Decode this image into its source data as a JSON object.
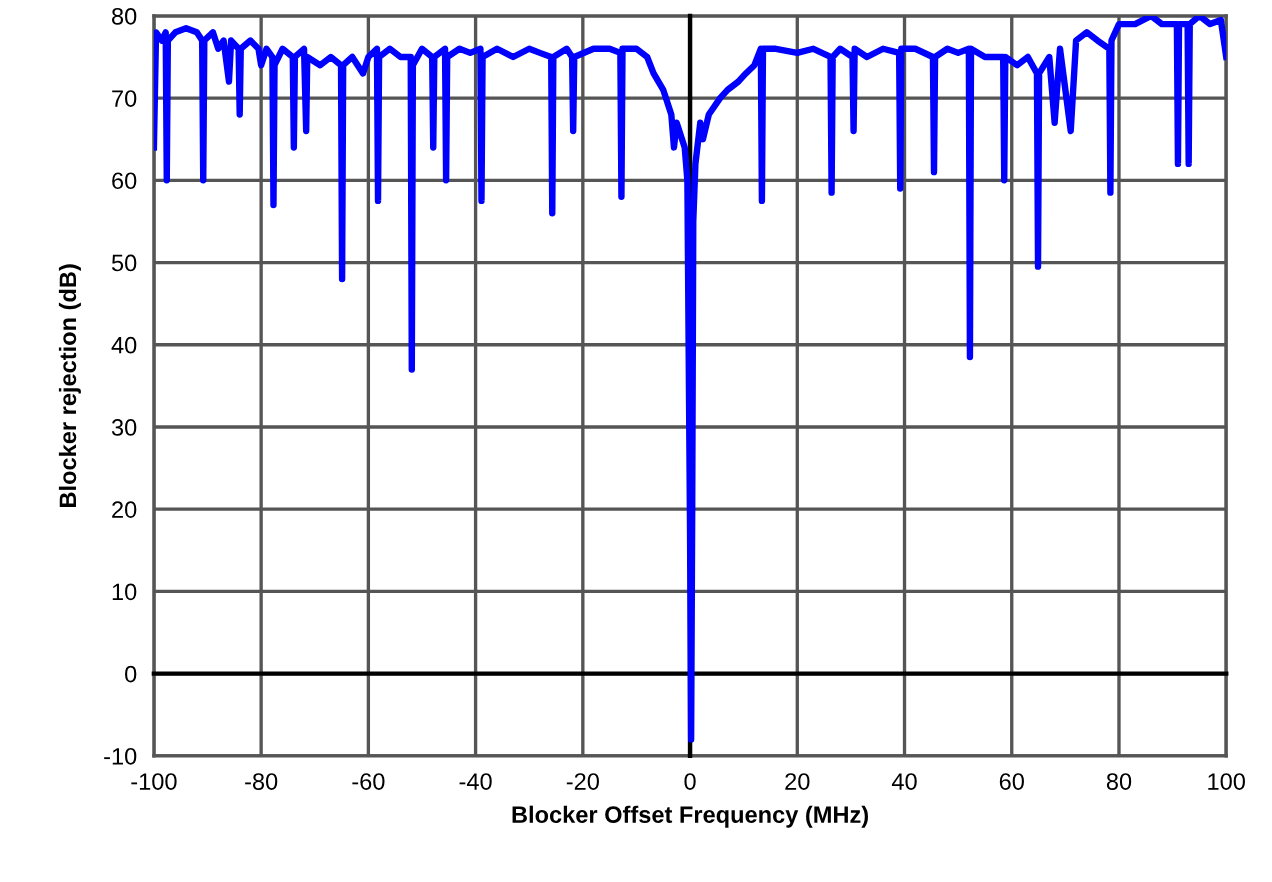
{
  "chart_data": {
    "type": "line",
    "xlabel": "Blocker Offset Frequency (MHz)",
    "ylabel": "Blocker rejection (dB)",
    "xlim": [
      -100,
      100
    ],
    "xticks": [
      -100,
      -80,
      -60,
      -40,
      -20,
      0,
      20,
      40,
      60,
      80,
      100
    ],
    "ylim": [
      -10,
      80
    ],
    "yticks": [
      -10,
      0,
      10,
      20,
      30,
      40,
      50,
      60,
      70,
      80
    ],
    "grid": true,
    "marker": "none",
    "line_style": "solid",
    "series": [
      {
        "color": "#0000ff",
        "x": [
          -100,
          -99.6,
          -98.5,
          -97.8,
          -97.6,
          -97.4,
          -96,
          -94,
          -92,
          -91,
          -90.8,
          -90.6,
          -89,
          -88,
          -87,
          -86,
          -85.6,
          -84.2,
          -84,
          -83.8,
          -82,
          -80.5,
          -80,
          -79,
          -77.9,
          -77.7,
          -77.5,
          -76,
          -74.1,
          -73.9,
          -73.7,
          -72,
          -71.6,
          -71.4,
          -69,
          -67,
          -65.1,
          -64.9,
          -64.7,
          -63,
          -61,
          -60,
          -58.4,
          -58.2,
          -58,
          -56,
          -54,
          -52.1,
          -51.9,
          -51.7,
          -50,
          -48.1,
          -47.9,
          -47.7,
          -45.7,
          -45.5,
          -45.3,
          -43,
          -41,
          -39.1,
          -38.9,
          -38.7,
          -36,
          -33,
          -30,
          -28,
          -25.9,
          -25.7,
          -25.5,
          -23,
          -22,
          -21.8,
          -21.6,
          -18,
          -15,
          -13,
          -12.8,
          -12.6,
          -10,
          -8,
          -6.8,
          -5,
          -3.5,
          -3,
          -2.5,
          -1.5,
          -1,
          -0.5,
          0,
          0.2,
          0.4,
          0.6,
          1,
          1.9,
          2.4,
          3.5,
          5.6,
          7,
          9,
          10.4,
          12,
          13.2,
          13.4,
          13.6,
          16,
          20,
          23,
          26.2,
          26.4,
          26.6,
          28,
          30.3,
          30.5,
          30.7,
          33,
          36,
          39,
          39.2,
          39.4,
          42,
          45.3,
          45.5,
          45.7,
          48,
          50,
          52,
          52.2,
          52.4,
          55,
          58.4,
          58.6,
          58.8,
          61,
          63,
          64.7,
          64.9,
          65.1,
          67,
          68,
          69,
          71,
          72,
          74,
          76,
          78.2,
          78.4,
          78.6,
          80,
          83,
          86,
          88,
          90.8,
          91,
          91.2,
          92.8,
          93,
          93.2,
          95,
          97,
          99,
          100
        ],
        "values": [
          64,
          78,
          77,
          78,
          60,
          77,
          78,
          78.5,
          78,
          77,
          60,
          77,
          78,
          76,
          77,
          72,
          77,
          76,
          68,
          76,
          77,
          76,
          74,
          76,
          75,
          57,
          74,
          76,
          75,
          64,
          75,
          76,
          66,
          75,
          74,
          75,
          74,
          48,
          74,
          75,
          73,
          75,
          76,
          57.5,
          75,
          76,
          75,
          75,
          37,
          74,
          76,
          75,
          64,
          75,
          76,
          60,
          75,
          76,
          75.5,
          76,
          57.5,
          75,
          76,
          75,
          76,
          75.5,
          75,
          56,
          75,
          76,
          75,
          66,
          75,
          76,
          76,
          75.5,
          58,
          76,
          76,
          75,
          73,
          71,
          68,
          64,
          67,
          65,
          64,
          60,
          17,
          -8,
          20,
          55,
          62,
          67,
          65,
          68,
          70,
          71,
          72,
          73,
          74,
          76,
          57.5,
          76,
          76,
          75.5,
          76,
          75,
          58.5,
          75,
          76,
          75,
          66,
          76,
          75,
          76,
          75.5,
          59,
          76,
          76,
          75,
          61,
          75,
          76,
          75.5,
          76,
          38.5,
          76,
          75,
          75,
          60,
          75,
          74,
          75,
          73,
          49.5,
          73,
          75,
          67,
          76,
          66,
          77,
          78,
          77,
          76,
          58.5,
          77,
          79,
          79,
          80,
          79,
          79,
          62,
          79,
          79,
          62,
          79,
          80,
          79,
          79.5,
          75
        ]
      }
    ]
  }
}
